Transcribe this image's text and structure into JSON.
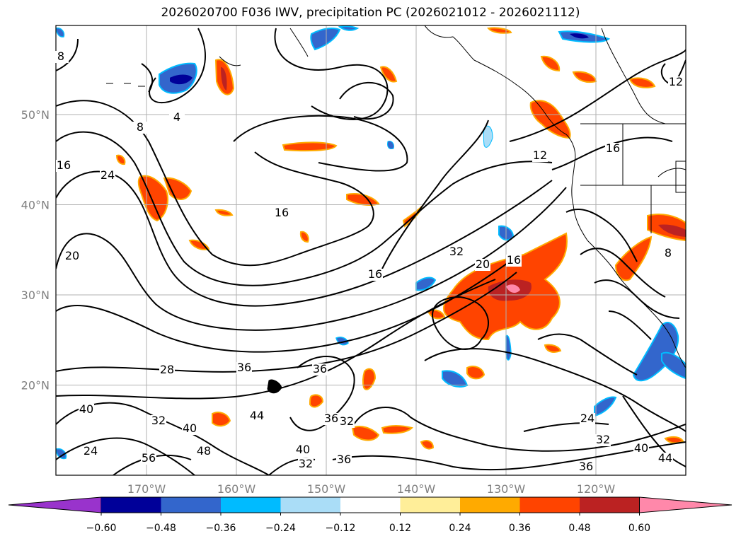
{
  "title": "2026020700 F036 IWV, precipitation PC (2026021012 - 2026021112)",
  "colors": {
    "land_outline": "#000000",
    "grid": "#b0b0b0",
    "tick_label": "#808080"
  },
  "map": {
    "lon_ticks": [
      {
        "lon": -170,
        "label": "170°W"
      },
      {
        "lon": -160,
        "label": "160°W"
      },
      {
        "lon": -150,
        "label": "150°W"
      },
      {
        "lon": -140,
        "label": "140°W"
      },
      {
        "lon": -130,
        "label": "130°W"
      },
      {
        "lon": -120,
        "label": "120°W"
      }
    ],
    "lat_ticks": [
      {
        "lat": 50,
        "label": "50°N"
      },
      {
        "lat": 40,
        "label": "40°N"
      },
      {
        "lat": 30,
        "label": "30°N"
      },
      {
        "lat": 20,
        "label": "20°N"
      }
    ],
    "contour_labels": [
      "8",
      "8",
      "4",
      "16",
      "24",
      "20",
      "16",
      "16",
      "32",
      "20",
      "16",
      "12",
      "16",
      "12",
      "8",
      "28",
      "36",
      "36",
      "40",
      "32",
      "40",
      "48",
      "44",
      "36",
      "32",
      "40",
      "32",
      "36",
      "24",
      "32",
      "40",
      "36",
      "44",
      "24",
      "56"
    ]
  },
  "colorbar": {
    "ticks": [
      "−0.60",
      "−0.48",
      "−0.36",
      "−0.24",
      "−0.12",
      "0.12",
      "0.24",
      "0.36",
      "0.48",
      "0.60"
    ],
    "colors": [
      "#9933cc",
      "#000099",
      "#3366cc",
      "#00bbff",
      "#aaddf7",
      "#ffffff",
      "#ffee99",
      "#ffaa00",
      "#ff4400",
      "#bb2222",
      "#ff88aa"
    ]
  }
}
